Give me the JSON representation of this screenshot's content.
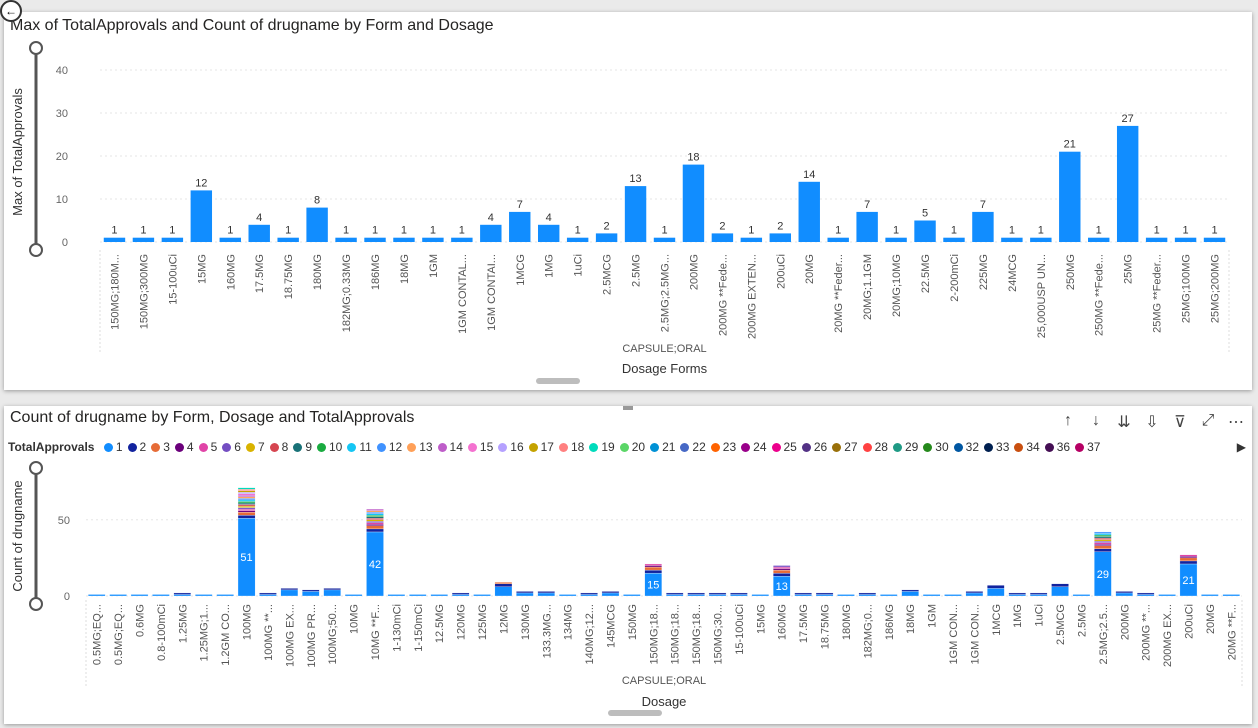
{
  "chart1": {
    "title": "Max of TotalApprovals and Count of drugname by Form and Dosage",
    "chart_data": {
      "type": "bar",
      "title": "Max of TotalApprovals and Count of drugname by Form and Dosage",
      "xlabel": "Dosage Forms",
      "ylabel": "Max of TotalApprovals",
      "group_label": "CAPSULE;ORAL",
      "ylim": [
        0,
        40
      ],
      "yticks": [
        0,
        10,
        20,
        30,
        40
      ],
      "grid": true,
      "categories": [
        "150MG;180M...",
        "150MG;300MG",
        "15-100uCi",
        "15MG",
        "160MG",
        "17.5MG",
        "18.75MG",
        "180MG",
        "182MG;0.33MG",
        "186MG",
        "18MG",
        "1GM",
        "1GM CONTAL...",
        "1GM CONTAI...",
        "1MCG",
        "1MG",
        "1uCi",
        "2.5MCG",
        "2.5MG",
        "2.5MG;2.5MG...",
        "200MG",
        "200MG **Fede...",
        "200MG EXTEN...",
        "200uCi",
        "20MG",
        "20MG **Feder...",
        "20MG;1.1GM",
        "20MG;10MG",
        "22.5MG",
        "2-200mCi",
        "225MG",
        "24MCG",
        "25,000USP UN...",
        "250MG",
        "250MG **Fede...",
        "25MG",
        "25MG **Feder...",
        "25MG;100MG",
        "25MG;200MG"
      ],
      "values": [
        1,
        1,
        1,
        12,
        1,
        4,
        1,
        8,
        1,
        1,
        1,
        1,
        1,
        4,
        7,
        4,
        1,
        2,
        13,
        1,
        18,
        2,
        1,
        2,
        14,
        1,
        7,
        1,
        5,
        1,
        7,
        1,
        1,
        21,
        1,
        27,
        1,
        1,
        1
      ],
      "bar_color": "#118DFF"
    }
  },
  "chart2": {
    "title": "Count of drugname by Form, Dosage and TotalApprovals",
    "icons": [
      "arrow-up-icon",
      "arrow-down-icon",
      "double-arrow-down-icon",
      "expand-hierarchy-icon",
      "filter-icon",
      "focus-mode-icon",
      "more-options-icon"
    ],
    "icon_glyphs": [
      "↑",
      "↓",
      "⇊",
      "⇩",
      "⊽",
      "⤢",
      "⋯"
    ],
    "legend": {
      "title": "TotalApprovals",
      "items": [
        {
          "label": "1",
          "color": "#118DFF"
        },
        {
          "label": "2",
          "color": "#12239E"
        },
        {
          "label": "3",
          "color": "#E66C37"
        },
        {
          "label": "4",
          "color": "#6B007B"
        },
        {
          "label": "5",
          "color": "#E044A7"
        },
        {
          "label": "6",
          "color": "#744EC2"
        },
        {
          "label": "7",
          "color": "#D9B300"
        },
        {
          "label": "8",
          "color": "#D64550"
        },
        {
          "label": "9",
          "color": "#197278"
        },
        {
          "label": "10",
          "color": "#1AAB40"
        },
        {
          "label": "11",
          "color": "#15C6F4"
        },
        {
          "label": "12",
          "color": "#4092FF"
        },
        {
          "label": "13",
          "color": "#FFA058"
        },
        {
          "label": "14",
          "color": "#BE5DC9"
        },
        {
          "label": "15",
          "color": "#F472D0"
        },
        {
          "label": "16",
          "color": "#B5A1FF"
        },
        {
          "label": "17",
          "color": "#C4A200"
        },
        {
          "label": "18",
          "color": "#FF8080"
        },
        {
          "label": "19",
          "color": "#00DBBC"
        },
        {
          "label": "20",
          "color": "#5BD667"
        },
        {
          "label": "21",
          "color": "#0091D5"
        },
        {
          "label": "22",
          "color": "#4668C5"
        },
        {
          "label": "23",
          "color": "#FF6300"
        },
        {
          "label": "24",
          "color": "#99008A"
        },
        {
          "label": "25",
          "color": "#EC008C"
        },
        {
          "label": "26",
          "color": "#533285"
        },
        {
          "label": "27",
          "color": "#99700A"
        },
        {
          "label": "28",
          "color": "#FF4141"
        },
        {
          "label": "29",
          "color": "#1F9A85"
        },
        {
          "label": "30",
          "color": "#25891C"
        },
        {
          "label": "32",
          "color": "#0057A2"
        },
        {
          "label": "33",
          "color": "#002050"
        },
        {
          "label": "34",
          "color": "#C94F0F"
        },
        {
          "label": "36",
          "color": "#450F54"
        },
        {
          "label": "37",
          "color": "#B60064"
        }
      ]
    },
    "chart_data": {
      "type": "bar",
      "stacked": true,
      "title": "Count of drugname by Form, Dosage and TotalApprovals",
      "xlabel": "Dosage",
      "ylabel": "Count of drugname",
      "group_label": "CAPSULE;ORAL",
      "ylim": [
        0,
        80
      ],
      "yticks": [
        0,
        50
      ],
      "grid": true,
      "categories": [
        "0.5MG;EQ...",
        "0.5MG;EQ...",
        "0.6MG",
        "0.8-100mCi",
        "1.25MG",
        "1.25MG;1...",
        "1.2GM CO...",
        "100MG",
        "100MG **...",
        "100MG EX...",
        "100MG PR...",
        "100MG;50...",
        "10MG",
        "10MG **F...",
        "1-130mCi",
        "1-150mCi",
        "12.5MG",
        "120MG",
        "125MG",
        "12MG",
        "130MG",
        "133.3MG...",
        "134MG",
        "140MG;12...",
        "145MCG",
        "150MG",
        "150MG;18...",
        "150MG;18...",
        "150MG;18...",
        "150MG;30...",
        "15-100uCi",
        "15MG",
        "160MG",
        "17.5MG",
        "18.75MG",
        "180MG",
        "182MG;0...",
        "186MG",
        "18MG",
        "1GM",
        "1GM CON...",
        "1GM CON...",
        "1MCG",
        "1MG",
        "1uCi",
        "2.5MCG",
        "2.5MG",
        "2.5MG;2.5...",
        "200MG",
        "200MG **...",
        "200MG EX...",
        "200uCi",
        "20MG",
        "20MG **F..."
      ],
      "totals": [
        1,
        1,
        1,
        1,
        2,
        1,
        1,
        71,
        2,
        5,
        4,
        5,
        1,
        57,
        1,
        1,
        1,
        2,
        1,
        9,
        3,
        3,
        1,
        2,
        3,
        1,
        21,
        2,
        2,
        2,
        2,
        1,
        20,
        2,
        2,
        1,
        2,
        1,
        4,
        1,
        1,
        3,
        7,
        2,
        2,
        8,
        1,
        42,
        3,
        2,
        1,
        27,
        1,
        1
      ],
      "labeled_segments": [
        {
          "category_index": 7,
          "series": "1",
          "value": 51
        },
        {
          "category_index": 13,
          "series": "1",
          "value": 42
        },
        {
          "category_index": 26,
          "series": "1",
          "value": 15
        },
        {
          "category_index": 32,
          "series": "1",
          "value": 13
        },
        {
          "category_index": 47,
          "series": "1",
          "value": 29
        },
        {
          "category_index": 51,
          "series": "1",
          "value": 21
        }
      ]
    }
  }
}
